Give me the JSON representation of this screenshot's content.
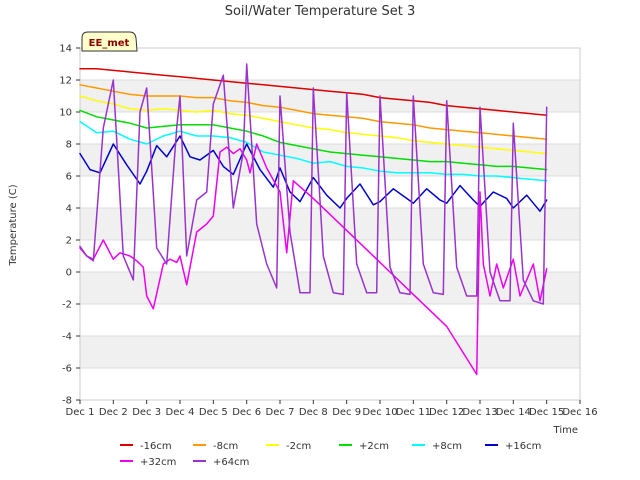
{
  "chart_data": {
    "type": "line",
    "title": "Soil/Water Temperature Set 3",
    "xlabel": "Time",
    "ylabel": "Temperature (C)",
    "badge": "EE_met",
    "x_ticks": [
      "Dec 1",
      "Dec 2",
      "Dec 3",
      "Dec 4",
      "Dec 5",
      "Dec 6",
      "Dec 7",
      "Dec 8",
      "Dec 9",
      "Dec 10",
      "Dec 11",
      "Dec 12",
      "Dec 13",
      "Dec 14",
      "Dec 15",
      "Dec 16"
    ],
    "xlim": [
      1,
      16
    ],
    "ylim": [
      -8,
      14
    ],
    "y_ticks": [
      -8,
      -6,
      -4,
      -2,
      0,
      2,
      4,
      6,
      8,
      10,
      12,
      14
    ],
    "grid": "horizontal alternating bands",
    "legend_position": "bottom",
    "series": [
      {
        "name": "-16cm",
        "color": "#dd0000",
        "x": [
          1.0,
          1.5,
          2.0,
          2.5,
          3.0,
          3.5,
          4.0,
          4.5,
          5.0,
          5.5,
          6.0,
          6.5,
          7.0,
          7.5,
          8.0,
          8.5,
          9.0,
          9.5,
          10.0,
          10.5,
          11.0,
          11.5,
          12.0,
          12.5,
          13.0,
          13.5,
          14.0,
          14.5,
          15.0
        ],
        "y": [
          12.7,
          12.7,
          12.6,
          12.5,
          12.4,
          12.3,
          12.2,
          12.1,
          12.0,
          11.9,
          11.8,
          11.7,
          11.6,
          11.5,
          11.4,
          11.3,
          11.2,
          11.1,
          10.9,
          10.8,
          10.7,
          10.6,
          10.4,
          10.3,
          10.2,
          10.1,
          10.0,
          9.9,
          9.8
        ]
      },
      {
        "name": "-8cm",
        "color": "#ff9900",
        "x": [
          1.0,
          1.5,
          2.0,
          2.5,
          3.0,
          3.5,
          4.0,
          4.5,
          5.0,
          5.5,
          6.0,
          6.5,
          7.0,
          7.5,
          8.0,
          8.5,
          9.0,
          9.5,
          10.0,
          10.5,
          11.0,
          11.5,
          12.0,
          12.5,
          13.0,
          13.5,
          14.0,
          14.5,
          15.0
        ],
        "y": [
          11.7,
          11.5,
          11.3,
          11.1,
          11.0,
          11.0,
          11.0,
          10.9,
          10.9,
          10.7,
          10.6,
          10.4,
          10.3,
          10.1,
          9.9,
          9.8,
          9.7,
          9.6,
          9.4,
          9.3,
          9.2,
          9.0,
          8.9,
          8.8,
          8.7,
          8.6,
          8.5,
          8.4,
          8.3
        ]
      },
      {
        "name": "-2cm",
        "color": "#ffff00",
        "x": [
          1.0,
          1.5,
          2.0,
          2.5,
          3.0,
          3.5,
          4.0,
          4.5,
          5.0,
          5.5,
          6.0,
          6.5,
          7.0,
          7.5,
          8.0,
          8.5,
          9.0,
          9.5,
          10.0,
          10.5,
          11.0,
          11.5,
          12.0,
          12.5,
          13.0,
          13.5,
          14.0,
          14.5,
          15.0
        ],
        "y": [
          11.0,
          10.7,
          10.5,
          10.2,
          10.1,
          10.2,
          10.1,
          10.0,
          10.1,
          9.9,
          9.8,
          9.6,
          9.4,
          9.2,
          9.0,
          8.9,
          8.7,
          8.6,
          8.5,
          8.4,
          8.2,
          8.1,
          8.0,
          7.9,
          7.8,
          7.7,
          7.6,
          7.5,
          7.4
        ]
      },
      {
        "name": "+2cm",
        "color": "#00dd00",
        "x": [
          1.0,
          1.5,
          2.0,
          2.5,
          3.0,
          3.5,
          4.0,
          4.5,
          5.0,
          5.5,
          6.0,
          6.5,
          7.0,
          7.5,
          8.0,
          8.5,
          9.0,
          9.5,
          10.0,
          10.5,
          11.0,
          11.5,
          12.0,
          12.5,
          13.0,
          13.5,
          14.0,
          14.5,
          15.0
        ],
        "y": [
          10.1,
          9.7,
          9.5,
          9.3,
          9.0,
          9.1,
          9.2,
          9.2,
          9.2,
          9.0,
          8.8,
          8.5,
          8.1,
          7.9,
          7.7,
          7.5,
          7.4,
          7.3,
          7.2,
          7.1,
          7.0,
          6.9,
          6.9,
          6.8,
          6.7,
          6.6,
          6.6,
          6.5,
          6.4
        ]
      },
      {
        "name": "+8cm",
        "color": "#00ffff",
        "x": [
          1.0,
          1.5,
          2.0,
          2.5,
          3.0,
          3.5,
          4.0,
          4.5,
          5.0,
          5.5,
          6.0,
          6.5,
          7.0,
          7.5,
          8.0,
          8.5,
          9.0,
          9.5,
          10.0,
          10.5,
          11.0,
          11.5,
          12.0,
          12.5,
          13.0,
          13.5,
          14.0,
          14.5,
          15.0
        ],
        "y": [
          9.4,
          8.7,
          8.8,
          8.3,
          8.0,
          8.5,
          8.8,
          8.5,
          8.5,
          8.4,
          8.1,
          7.5,
          7.3,
          7.1,
          6.8,
          6.9,
          6.6,
          6.5,
          6.3,
          6.2,
          6.2,
          6.2,
          6.1,
          6.1,
          6.0,
          6.0,
          5.9,
          5.8,
          5.7
        ]
      },
      {
        "name": "+16cm",
        "color": "#0000cc",
        "x": [
          1.0,
          1.3,
          1.6,
          2.0,
          2.4,
          2.8,
          3.0,
          3.3,
          3.6,
          4.0,
          4.3,
          4.6,
          5.0,
          5.3,
          5.6,
          6.0,
          6.4,
          6.8,
          7.0,
          7.3,
          7.6,
          8.0,
          8.4,
          8.8,
          9.0,
          9.4,
          9.8,
          10.0,
          10.4,
          10.8,
          11.0,
          11.4,
          11.8,
          12.0,
          12.4,
          12.8,
          13.0,
          13.4,
          13.8,
          14.0,
          14.4,
          14.8,
          15.0
        ],
        "y": [
          7.4,
          6.4,
          6.2,
          8.0,
          6.7,
          5.5,
          6.3,
          7.9,
          7.2,
          8.5,
          7.2,
          7.0,
          7.6,
          6.6,
          6.1,
          8.0,
          6.4,
          5.3,
          6.5,
          5.0,
          4.4,
          5.9,
          4.8,
          4.0,
          4.6,
          5.5,
          4.2,
          4.4,
          5.2,
          4.6,
          4.3,
          5.2,
          4.5,
          4.3,
          5.4,
          4.5,
          4.1,
          5.0,
          4.6,
          4.0,
          4.8,
          3.8,
          4.5
        ]
      },
      {
        "name": "+32cm",
        "color": "#ee00ee",
        "x": [
          1.0,
          1.2,
          1.4,
          1.7,
          2.0,
          2.2,
          2.5,
          2.7,
          2.9,
          3.0,
          3.2,
          3.5,
          3.7,
          3.9,
          4.0,
          4.2,
          4.5,
          4.8,
          5.0,
          5.2,
          5.4,
          5.6,
          5.8,
          6.0,
          6.1,
          6.3,
          6.6,
          7.0,
          7.2,
          7.4,
          8.0,
          9.0,
          10.0,
          11.0,
          12.0,
          12.9,
          13.0,
          13.1,
          13.3,
          13.5,
          13.7,
          14.0,
          14.2,
          14.4,
          14.6,
          14.8,
          15.0
        ],
        "y": [
          1.5,
          1.0,
          0.8,
          2.0,
          0.8,
          1.2,
          1.0,
          0.7,
          0.3,
          -1.5,
          -2.3,
          0.5,
          0.8,
          0.6,
          1.0,
          -0.8,
          2.5,
          3.0,
          3.5,
          7.5,
          7.8,
          7.4,
          7.7,
          7.0,
          6.2,
          8.0,
          6.5,
          5.0,
          1.2,
          5.7,
          4.6,
          2.6,
          0.6,
          -1.4,
          -3.4,
          -6.4,
          5.0,
          0.5,
          -1.5,
          0.5,
          -1.0,
          0.8,
          -1.5,
          -0.5,
          0.5,
          -1.8,
          0.2
        ]
      },
      {
        "name": "+64cm",
        "color": "#9933cc",
        "x": [
          1.0,
          1.2,
          1.4,
          1.7,
          2.0,
          2.3,
          2.6,
          2.8,
          3.0,
          3.3,
          3.6,
          3.9,
          4.0,
          4.2,
          4.5,
          4.8,
          5.0,
          5.3,
          5.6,
          5.9,
          6.0,
          6.3,
          6.6,
          6.9,
          7.0,
          7.3,
          7.6,
          7.9,
          8.0,
          8.3,
          8.6,
          8.9,
          9.0,
          9.3,
          9.6,
          9.9,
          10.0,
          10.3,
          10.6,
          10.9,
          11.0,
          11.3,
          11.6,
          11.9,
          12.0,
          12.3,
          12.6,
          12.9,
          13.0,
          13.3,
          13.6,
          13.9,
          14.0,
          14.3,
          14.6,
          14.9,
          15.0
        ],
        "y": [
          1.6,
          1.0,
          0.7,
          9.0,
          12.0,
          1.0,
          -0.5,
          10.0,
          11.5,
          1.5,
          0.5,
          9.0,
          11.0,
          1.0,
          4.5,
          5.0,
          10.5,
          12.3,
          4.0,
          7.5,
          13.0,
          3.0,
          0.5,
          -1.0,
          11.0,
          2.5,
          -1.3,
          -1.3,
          11.5,
          1.0,
          -1.3,
          -1.4,
          11.2,
          0.5,
          -1.3,
          -1.3,
          11.0,
          0.3,
          -1.3,
          -1.4,
          11.0,
          0.5,
          -1.3,
          -1.4,
          10.7,
          0.3,
          -1.5,
          -1.5,
          10.3,
          0.0,
          -1.8,
          -1.8,
          9.3,
          -0.5,
          -1.8,
          -2.0,
          10.3
        ]
      }
    ]
  }
}
